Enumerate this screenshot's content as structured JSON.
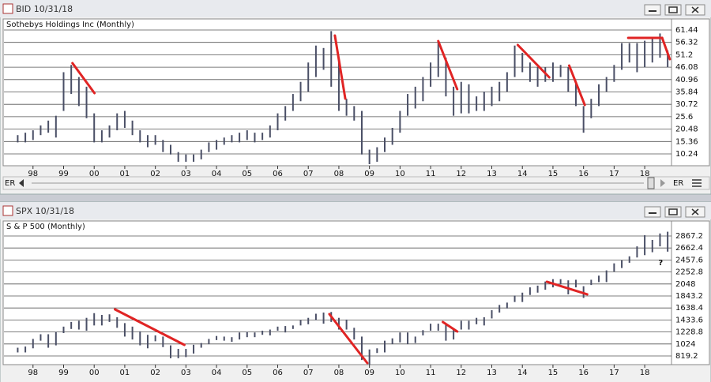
{
  "windows": [
    {
      "title": "BID 10/31/18",
      "scroll_left": "ER",
      "scroll_right": "ER"
    },
    {
      "title": "SPX 10/31/18"
    }
  ],
  "chart_data": [
    {
      "type": "hlbar",
      "title": "Sothebys Holdings Inc (Monthly)",
      "color": "#4a4f66",
      "xlim": [
        1997.05,
        2018.85
      ],
      "xticks": [
        {
          "value": 1998,
          "label": "98"
        },
        {
          "value": 1999,
          "label": "99"
        },
        {
          "value": 2000,
          "label": "00"
        },
        {
          "value": 2001,
          "label": "01"
        },
        {
          "value": 2002,
          "label": "02"
        },
        {
          "value": 2003,
          "label": "03"
        },
        {
          "value": 2004,
          "label": "04"
        },
        {
          "value": 2005,
          "label": "05"
        },
        {
          "value": 2006,
          "label": "06"
        },
        {
          "value": 2007,
          "label": "07"
        },
        {
          "value": 2008,
          "label": "08"
        },
        {
          "value": 2009,
          "label": "09"
        },
        {
          "value": 2010,
          "label": "10"
        },
        {
          "value": 2011,
          "label": "11"
        },
        {
          "value": 2012,
          "label": "12"
        },
        {
          "value": 2013,
          "label": "13"
        },
        {
          "value": 2014,
          "label": "14"
        },
        {
          "value": 2015,
          "label": "15"
        },
        {
          "value": 2016,
          "label": "16"
        },
        {
          "value": 2017,
          "label": "17"
        },
        {
          "value": 2018,
          "label": "18"
        }
      ],
      "ylim": [
        5.35,
        66.0
      ],
      "yticks": [
        10.24,
        15.36,
        20.48,
        25.6,
        30.72,
        35.84,
        40.96,
        46.08,
        51.2,
        56.32,
        61.44
      ],
      "grid": true,
      "x": [
        1997.5,
        1997.75,
        1998,
        1998.25,
        1998.5,
        1998.75,
        1999,
        1999.25,
        1999.5,
        1999.75,
        2000,
        2000.25,
        2000.5,
        2000.75,
        2001,
        2001.25,
        2001.5,
        2001.75,
        2002,
        2002.25,
        2002.5,
        2002.75,
        2003,
        2003.25,
        2003.5,
        2003.75,
        2004,
        2004.25,
        2004.5,
        2004.75,
        2005,
        2005.25,
        2005.5,
        2005.75,
        2006,
        2006.25,
        2006.5,
        2006.75,
        2007,
        2007.25,
        2007.5,
        2007.75,
        2008,
        2008.25,
        2008.5,
        2008.75,
        2009,
        2009.25,
        2009.5,
        2009.75,
        2010,
        2010.25,
        2010.5,
        2010.75,
        2011,
        2011.25,
        2011.5,
        2011.75,
        2012,
        2012.25,
        2012.5,
        2012.75,
        2013,
        2013.25,
        2013.5,
        2013.75,
        2014,
        2014.25,
        2014.5,
        2014.75,
        2015,
        2015.25,
        2015.5,
        2015.75,
        2016,
        2016.25,
        2016.5,
        2016.75,
        2017,
        2017.25,
        2017.5,
        2017.75,
        2018,
        2018.25,
        2018.5,
        2018.75
      ],
      "low": [
        15,
        15,
        16,
        18,
        19,
        17,
        28,
        35,
        30,
        25,
        15,
        15,
        17,
        20,
        21,
        18,
        15,
        13,
        14,
        11,
        10,
        7,
        7,
        7,
        8,
        11,
        12,
        14,
        15,
        15,
        16,
        15,
        16,
        17,
        20,
        24,
        28,
        32,
        36,
        42,
        45,
        38,
        28,
        26,
        24,
        10,
        6,
        7,
        11,
        14,
        19,
        26,
        29,
        32,
        38,
        42,
        34,
        26,
        27,
        27,
        28,
        28,
        30,
        32,
        36,
        42,
        44,
        40,
        38,
        40,
        40,
        42,
        36,
        30,
        19,
        25,
        30,
        36,
        40,
        45,
        48,
        44,
        46,
        48,
        50,
        46
      ],
      "high": [
        18,
        19,
        20,
        22,
        24,
        26,
        44,
        47,
        42,
        38,
        27,
        20,
        22,
        27,
        28,
        24,
        20,
        18,
        18,
        16,
        14,
        11,
        10,
        10,
        12,
        15,
        16,
        17,
        18,
        19,
        20,
        19,
        19,
        22,
        27,
        30,
        35,
        40,
        48,
        55,
        54,
        61,
        50,
        33,
        30,
        28,
        12,
        13,
        17,
        21,
        28,
        35,
        38,
        42,
        48,
        57,
        50,
        38,
        40,
        39,
        34,
        36,
        38,
        40,
        44,
        55,
        52,
        48,
        46,
        46,
        48,
        47,
        46,
        40,
        30,
        33,
        39,
        42,
        47,
        56,
        56,
        56,
        57,
        58,
        60,
        53
      ],
      "trendlines": [
        {
          "x": [
            1999.29,
            2000.01
          ],
          "y": [
            47.74,
            35.35
          ]
        },
        {
          "x": [
            2007.87,
            2008.21
          ],
          "y": [
            59.16,
            33.07
          ]
        },
        {
          "x": [
            2011.25,
            2011.87
          ],
          "y": [
            56.87,
            36.98
          ]
        },
        {
          "x": [
            2013.85,
            2014.88
          ],
          "y": [
            55.24,
            41.87
          ]
        },
        {
          "x": [
            2015.53,
            2016.04
          ],
          "y": [
            46.76,
            30.46
          ]
        },
        {
          "x": [
            2017.46,
            2018.57
          ],
          "y": [
            58.18,
            58.18
          ]
        },
        {
          "x": [
            2018.57,
            2018.82
          ],
          "y": [
            58.18,
            49.37
          ]
        }
      ],
      "trend_color": "#e02424"
    },
    {
      "type": "hlbar",
      "title": "S & P 500 (Monthly)",
      "color": "#4a4f66",
      "xlim": [
        1997.05,
        2018.85
      ],
      "xticks": [
        {
          "value": 1998,
          "label": "98"
        },
        {
          "value": 1999,
          "label": "99"
        },
        {
          "value": 2000,
          "label": "00"
        },
        {
          "value": 2001,
          "label": "01"
        },
        {
          "value": 2002,
          "label": "02"
        },
        {
          "value": 2003,
          "label": "03"
        },
        {
          "value": 2004,
          "label": "04"
        },
        {
          "value": 2005,
          "label": "05"
        },
        {
          "value": 2006,
          "label": "06"
        },
        {
          "value": 2007,
          "label": "07"
        },
        {
          "value": 2008,
          "label": "08"
        },
        {
          "value": 2009,
          "label": "09"
        },
        {
          "value": 2010,
          "label": "10"
        },
        {
          "value": 2011,
          "label": "11"
        },
        {
          "value": 2012,
          "label": "12"
        },
        {
          "value": 2013,
          "label": "13"
        },
        {
          "value": 2014,
          "label": "14"
        },
        {
          "value": 2015,
          "label": "15"
        },
        {
          "value": 2016,
          "label": "16"
        },
        {
          "value": 2017,
          "label": "17"
        },
        {
          "value": 2018,
          "label": "18"
        }
      ],
      "ylim": [
        671,
        3123
      ],
      "yticks": [
        819.2,
        1024,
        1228.8,
        1433.6,
        1638.4,
        1843.2,
        2048,
        2252.8,
        2457.6,
        2662.4,
        2867.2
      ],
      "grid": true,
      "x": [
        1997.5,
        1997.75,
        1998,
        1998.25,
        1998.5,
        1998.75,
        1999,
        1999.25,
        1999.5,
        1999.75,
        2000,
        2000.25,
        2000.5,
        2000.75,
        2001,
        2001.25,
        2001.5,
        2001.75,
        2002,
        2002.25,
        2002.5,
        2002.75,
        2003,
        2003.25,
        2003.5,
        2003.75,
        2004,
        2004.25,
        2004.5,
        2004.75,
        2005,
        2005.25,
        2005.5,
        2005.75,
        2006,
        2006.25,
        2006.5,
        2006.75,
        2007,
        2007.25,
        2007.5,
        2007.75,
        2008,
        2008.25,
        2008.5,
        2008.75,
        2009,
        2009.25,
        2009.5,
        2009.75,
        2010,
        2010.25,
        2010.5,
        2010.75,
        2011,
        2011.25,
        2011.5,
        2011.75,
        2012,
        2012.25,
        2012.5,
        2012.75,
        2013,
        2013.25,
        2013.5,
        2013.75,
        2014,
        2014.25,
        2014.5,
        2014.75,
        2015,
        2015.25,
        2015.5,
        2015.75,
        2016,
        2016.25,
        2016.5,
        2016.75,
        2017,
        2017.25,
        2017.5,
        2017.75,
        2018,
        2018.25,
        2018.5,
        2018.75
      ],
      "low": [
        880,
        880,
        950,
        1080,
        960,
        1000,
        1210,
        1280,
        1270,
        1250,
        1340,
        1340,
        1400,
        1300,
        1150,
        1100,
        1000,
        950,
        1070,
        970,
        780,
        780,
        800,
        860,
        960,
        1020,
        1090,
        1080,
        1060,
        1100,
        1140,
        1140,
        1180,
        1170,
        1250,
        1220,
        1280,
        1340,
        1360,
        1430,
        1370,
        1400,
        1270,
        1270,
        1100,
        750,
        670,
        870,
        880,
        1020,
        1050,
        1020,
        1040,
        1170,
        1250,
        1250,
        1080,
        1100,
        1270,
        1270,
        1360,
        1340,
        1460,
        1560,
        1630,
        1740,
        1740,
        1860,
        1900,
        1950,
        1990,
        2040,
        1870,
        1990,
        1810,
        2030,
        2080,
        2080,
        2260,
        2320,
        2410,
        2500,
        2540,
        2590,
        2690,
        2600
      ],
      "high": [
        960,
        980,
        1110,
        1190,
        1190,
        1230,
        1320,
        1400,
        1420,
        1470,
        1550,
        1520,
        1530,
        1480,
        1380,
        1320,
        1240,
        1180,
        1170,
        1150,
        1000,
        940,
        940,
        1010,
        1040,
        1110,
        1160,
        1150,
        1140,
        1220,
        1230,
        1220,
        1250,
        1270,
        1320,
        1330,
        1340,
        1430,
        1470,
        1540,
        1560,
        1570,
        1470,
        1440,
        1300,
        1150,
        930,
        950,
        1080,
        1120,
        1220,
        1220,
        1150,
        1260,
        1370,
        1370,
        1350,
        1290,
        1420,
        1420,
        1470,
        1480,
        1600,
        1690,
        1730,
        1850,
        1900,
        1990,
        2020,
        2090,
        2130,
        2130,
        2110,
        2120,
        2010,
        2120,
        2190,
        2280,
        2400,
        2450,
        2520,
        2690,
        2880,
        2800,
        2910,
        2940
      ],
      "trendlines": [
        {
          "x": [
            2000.68,
            2002.95
          ],
          "y": [
            1614.2,
            1007.8
          ]
        },
        {
          "x": [
            2007.69,
            2008.93
          ],
          "y": [
            1533.3,
            697.9
          ]
        },
        {
          "x": [
            2011.4,
            2011.87
          ],
          "y": [
            1398.6,
            1236.9
          ]
        },
        {
          "x": [
            2014.8,
            2016.12
          ],
          "y": [
            2085.7,
            1870.2
          ]
        }
      ],
      "trend_color": "#e02424",
      "annotations": [
        {
          "text": "?",
          "x": 2018.52,
          "y": 2409
        }
      ]
    }
  ]
}
